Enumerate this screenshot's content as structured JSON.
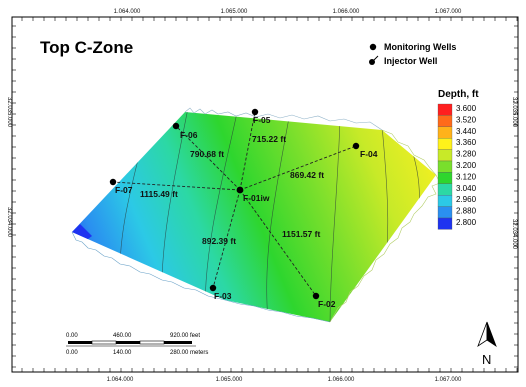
{
  "title": "Top C-Zone",
  "legend": {
    "monitoring_label": "Monitoring Wells",
    "injector_label": "Injector Well"
  },
  "colorbar": {
    "title": "Depth, ft",
    "ticks": [
      "3.600",
      "3.520",
      "3.440",
      "3.360",
      "3.280",
      "3.200",
      "3.120",
      "3.040",
      "2.960",
      "2.880",
      "2.800"
    ],
    "colors": [
      "#ff1f1f",
      "#ff6a1a",
      "#ffb21a",
      "#fff21a",
      "#c8ea28",
      "#79df2c",
      "#2ed62e",
      "#2cd8a4",
      "#2cc9e6",
      "#2a8ff0",
      "#1e33f0"
    ]
  },
  "axes": {
    "x_top": [
      "1.064.000",
      "1.065.000",
      "1.066.000",
      "1.067.000"
    ],
    "x_bottom": [
      "1.064.000",
      "1.065.000",
      "1.066.000",
      "1.067.000"
    ],
    "y_left": [
      "32.035.000",
      "32.034.000"
    ],
    "y_right": [
      "32.035.000",
      "32.034.000"
    ]
  },
  "wells": {
    "injector": {
      "name": "F-01iw"
    },
    "monitors": [
      {
        "name": "F-05",
        "distance": "715.22 ft"
      },
      {
        "name": "F-06",
        "distance": "790.68 ft"
      },
      {
        "name": "F-04",
        "distance": "869.42 ft"
      },
      {
        "name": "F-07",
        "distance": "1115.49 ft"
      },
      {
        "name": "F-03",
        "distance": "892.39 ft"
      },
      {
        "name": "F-02",
        "distance": "1151.57 ft"
      }
    ]
  },
  "scale_bar": {
    "feet": [
      "0.00",
      "460.00",
      "920.00 feet"
    ],
    "meters": [
      "0.00",
      "140.00",
      "280.00 meters"
    ]
  },
  "north_label": "N",
  "colors": {
    "frame": "#000000",
    "well_point": "#000000",
    "connector": "#222222",
    "contour": "#333333"
  }
}
